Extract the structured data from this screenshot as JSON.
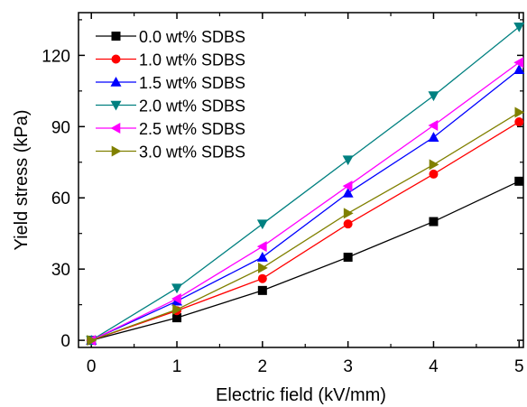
{
  "chart_data": {
    "type": "line",
    "xlabel": "Electric field (kV/mm)",
    "ylabel": "Yield stress (kPa)",
    "x": [
      0,
      1,
      2,
      3,
      4,
      5
    ],
    "xlim": [
      -0.15,
      5.05
    ],
    "ylim": [
      -3,
      138
    ],
    "xticks": [
      "0",
      "1",
      "2",
      "3",
      "4",
      "5"
    ],
    "yticks": [
      "0",
      "30",
      "60",
      "90",
      "120"
    ],
    "legend_position": "top-left",
    "grid": false,
    "series": [
      {
        "name": "0.0 wt% SDBS",
        "color": "#000000",
        "marker": "square",
        "values": [
          0,
          9.5,
          21,
          35,
          50,
          67
        ]
      },
      {
        "name": "1.0 wt% SDBS",
        "color": "#ff0000",
        "marker": "circle",
        "values": [
          0,
          12.5,
          26,
          49,
          70,
          92
        ]
      },
      {
        "name": "1.5 wt% SDBS",
        "color": "#0000ff",
        "marker": "triangle-up",
        "values": [
          0,
          16.5,
          35,
          62,
          85.5,
          114
        ]
      },
      {
        "name": "2.0 wt% SDBS",
        "color": "#008080",
        "marker": "triangle-down",
        "values": [
          0,
          22,
          49,
          76,
          103,
          132
        ]
      },
      {
        "name": "2.5 wt% SDBS",
        "color": "#ff00ff",
        "marker": "triangle-left",
        "values": [
          0,
          17.5,
          39.5,
          65,
          90.5,
          117
        ]
      },
      {
        "name": "3.0 wt% SDBS",
        "color": "#808000",
        "marker": "triangle-right",
        "values": [
          0,
          13,
          30.5,
          53.5,
          74,
          96
        ]
      }
    ]
  }
}
